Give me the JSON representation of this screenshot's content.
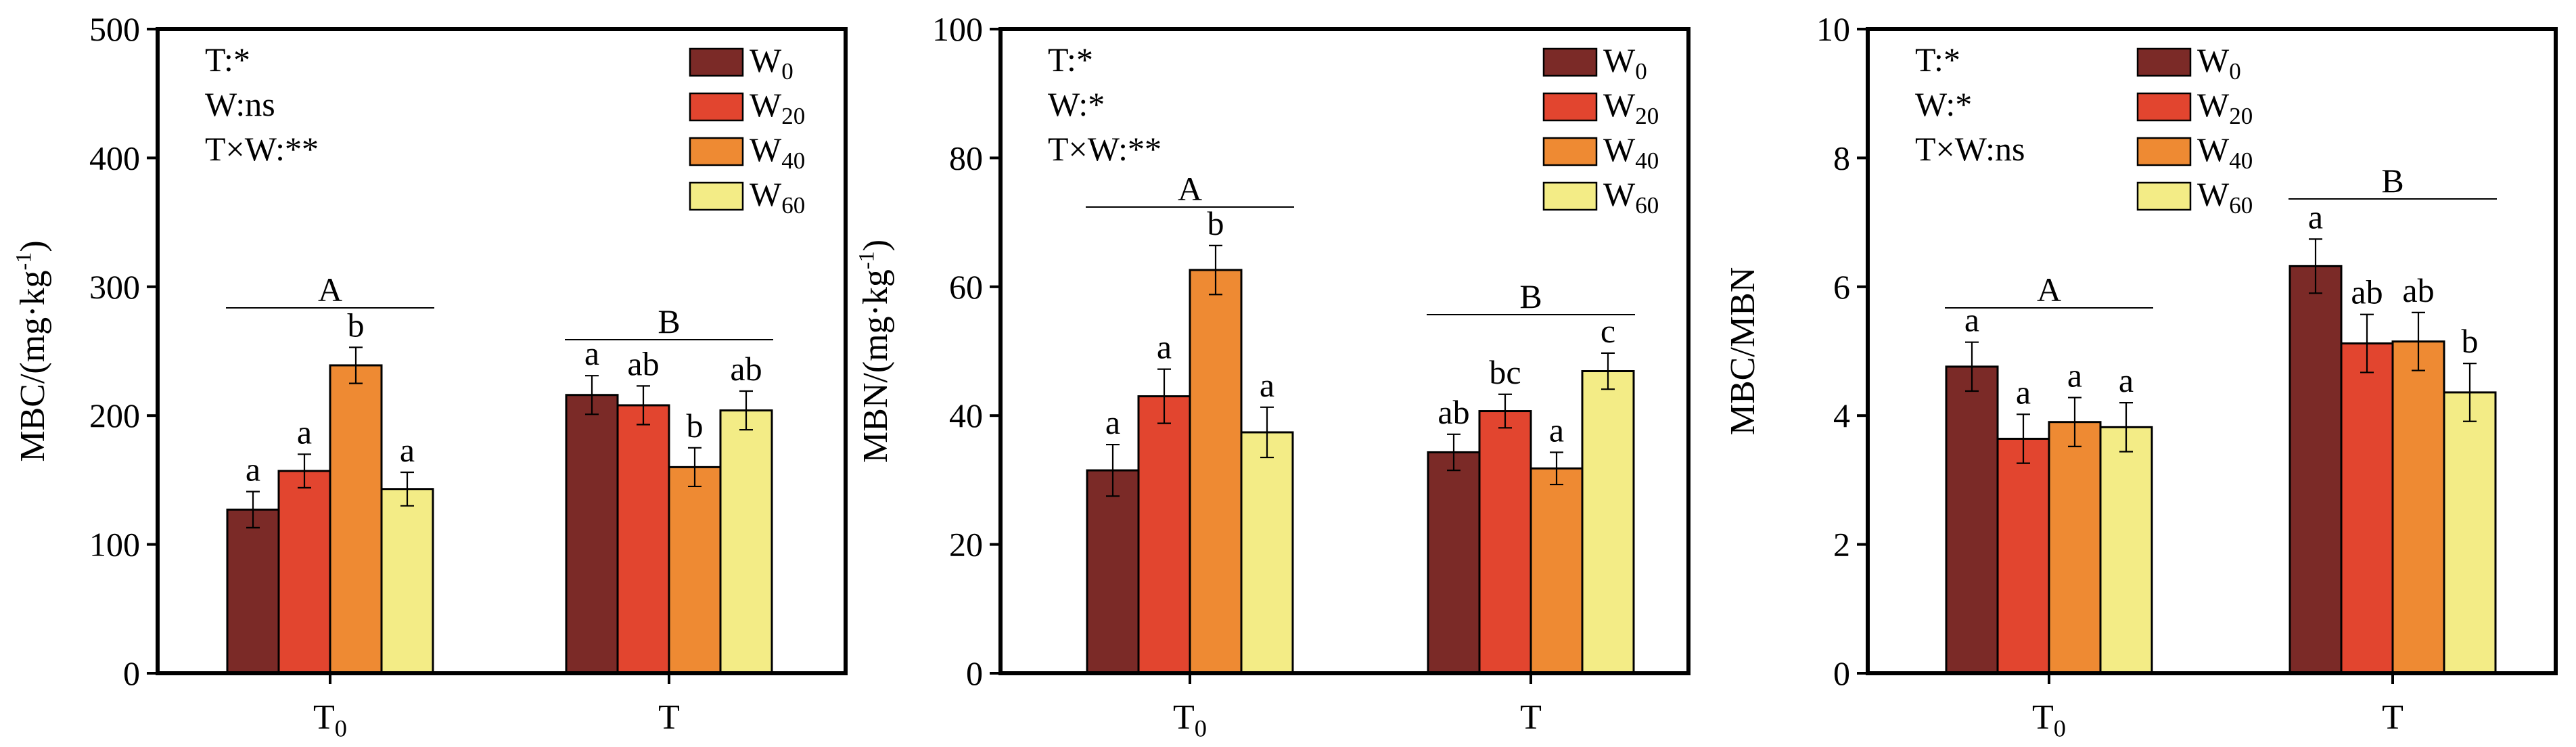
{
  "chart_data": [
    {
      "type": "bar",
      "ylabel": "MBC/(mg·kg⁻¹)",
      "ylim": [
        0,
        500
      ],
      "yticks": [
        0,
        100,
        200,
        300,
        400,
        500
      ],
      "categories": [
        "T₀",
        "T"
      ],
      "stats": [
        "T:*",
        "W:ns",
        "T×W:**"
      ],
      "legend_position": "top-right",
      "series": [
        {
          "name": "W₀",
          "color": "#7B2A27",
          "values": [
            127,
            216
          ],
          "errors": [
            14,
            15
          ],
          "letters": [
            "a",
            "a"
          ]
        },
        {
          "name": "W₂₀",
          "color": "#E2452F",
          "values": [
            157,
            208
          ],
          "errors": [
            13,
            15
          ],
          "letters": [
            "a",
            "ab"
          ]
        },
        {
          "name": "W₄₀",
          "color": "#EE8A33",
          "values": [
            239,
            160
          ],
          "errors": [
            14,
            15
          ],
          "letters": [
            "b",
            "b"
          ]
        },
        {
          "name": "W₆₀",
          "color": "#F3EC86",
          "values": [
            143,
            204
          ],
          "errors": [
            13,
            15
          ],
          "letters": [
            "a",
            "ab"
          ]
        }
      ],
      "group_letters": [
        "A",
        "B"
      ],
      "grid": false
    },
    {
      "type": "bar",
      "ylabel": "MBN/(mg·kg⁻¹)",
      "ylim": [
        0,
        100
      ],
      "yticks": [
        0,
        20,
        40,
        60,
        80,
        100
      ],
      "categories": [
        "T₀",
        "T"
      ],
      "stats": [
        "T:*",
        "W:*",
        "T×W:**"
      ],
      "legend_position": "top-right",
      "series": [
        {
          "name": "W₀",
          "color": "#7B2A27",
          "values": [
            31.5,
            34.3
          ],
          "errors": [
            4.0,
            2.8
          ],
          "letters": [
            "a",
            "ab"
          ]
        },
        {
          "name": "W₂₀",
          "color": "#E2452F",
          "values": [
            43.0,
            40.7
          ],
          "errors": [
            4.2,
            2.6
          ],
          "letters": [
            "a",
            "bc"
          ]
        },
        {
          "name": "W₄₀",
          "color": "#EE8A33",
          "values": [
            62.6,
            31.8
          ],
          "errors": [
            3.8,
            2.5
          ],
          "letters": [
            "b",
            "a"
          ]
        },
        {
          "name": "W₆₀",
          "color": "#F3EC86",
          "values": [
            37.4,
            46.9
          ],
          "errors": [
            3.9,
            2.8
          ],
          "letters": [
            "a",
            "c"
          ]
        }
      ],
      "group_letters": [
        "A",
        "B"
      ],
      "grid": false
    },
    {
      "type": "bar",
      "ylabel": "MBC/MBN",
      "ylim": [
        0,
        10
      ],
      "yticks": [
        0,
        2,
        4,
        6,
        8,
        10
      ],
      "categories": [
        "T₀",
        "T"
      ],
      "stats": [
        "T:*",
        "W:*",
        "T×W:ns"
      ],
      "legend_position": "top-center",
      "series": [
        {
          "name": "W₀",
          "color": "#7B2A27",
          "values": [
            4.76,
            6.32
          ],
          "errors": [
            0.38,
            0.42
          ],
          "letters": [
            "a",
            "a"
          ]
        },
        {
          "name": "W₂₀",
          "color": "#E2452F",
          "values": [
            3.64,
            5.12
          ],
          "errors": [
            0.38,
            0.45
          ],
          "letters": [
            "a",
            "ab"
          ]
        },
        {
          "name": "W₄₀",
          "color": "#EE8A33",
          "values": [
            3.9,
            5.15
          ],
          "errors": [
            0.38,
            0.45
          ],
          "letters": [
            "a",
            "ab"
          ]
        },
        {
          "name": "W₆₀",
          "color": "#F3EC86",
          "values": [
            3.82,
            4.36
          ],
          "errors": [
            0.38,
            0.45
          ],
          "letters": [
            "a",
            "b"
          ]
        }
      ],
      "group_letters": [
        "A",
        "B"
      ],
      "grid": false
    }
  ]
}
